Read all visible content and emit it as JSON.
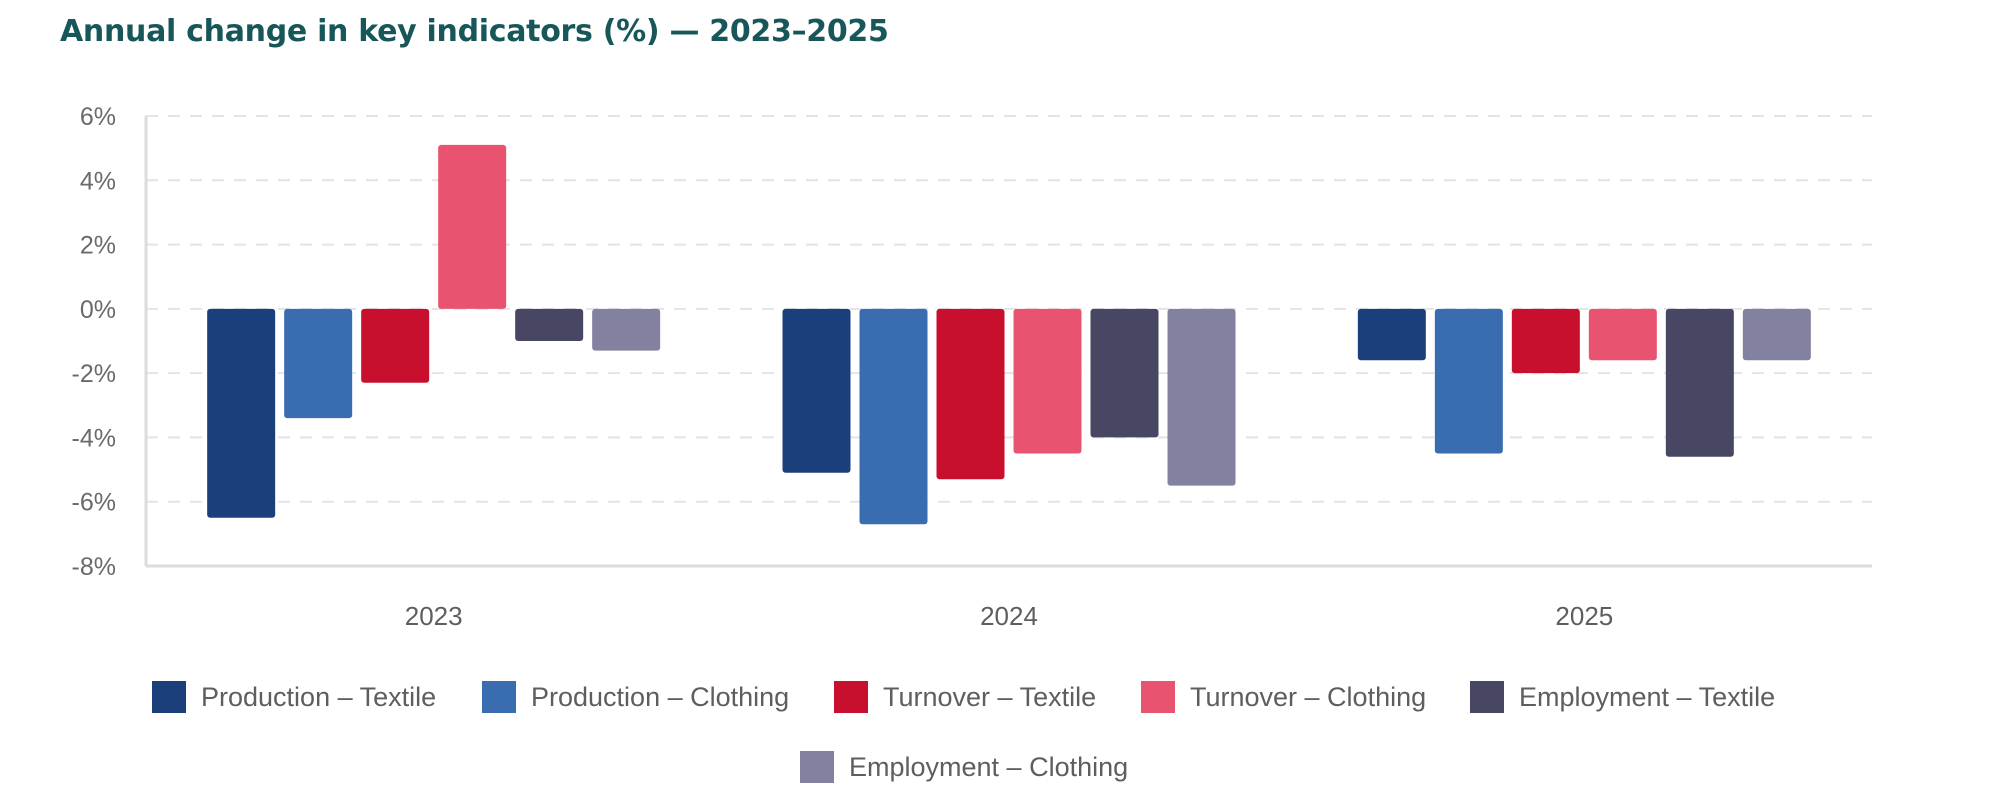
{
  "title": "Annual change in key indicators (%) — 2023–2025",
  "chart_data": {
    "type": "bar",
    "title": "Annual change in key indicators (%) — 2023–2025",
    "categories": [
      "2023",
      "2024",
      "2025"
    ],
    "series": [
      {
        "name": "Production – Textile",
        "color": "#1b3f7a",
        "values": [
          -6.5,
          -5.1,
          -1.6
        ]
      },
      {
        "name": "Production – Clothing",
        "color": "#3a6daf",
        "values": [
          -3.4,
          -6.7,
          -4.5
        ]
      },
      {
        "name": "Turnover – Textile",
        "color": "#c8102e",
        "values": [
          -2.3,
          -5.3,
          -2.0
        ]
      },
      {
        "name": "Turnover – Clothing",
        "color": "#e8546f",
        "values": [
          5.1,
          -4.5,
          -1.6
        ]
      },
      {
        "name": "Employment – Textile",
        "color": "#474763",
        "values": [
          -1.0,
          -4.0,
          -4.6
        ]
      },
      {
        "name": "Employment – Clothing",
        "color": "#8282a0",
        "values": [
          -1.3,
          -5.5,
          -1.6
        ]
      }
    ],
    "ylim": [
      -8,
      6
    ],
    "yticks": [
      "6%",
      "4%",
      "2%",
      "0%",
      "-2%",
      "-4%",
      "-6%",
      "-8%"
    ],
    "grid": true,
    "legend_position": "bottom"
  }
}
